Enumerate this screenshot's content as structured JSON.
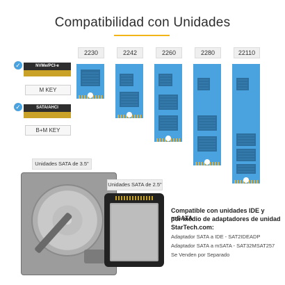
{
  "title": "Compatibilidad con Unidades",
  "m2_sizes": [
    "2230",
    "2242",
    "2260",
    "2280",
    "22110"
  ],
  "keys": [
    {
      "card_label": "NVMe/PCI-e",
      "key_label": "M KEY"
    },
    {
      "card_label": "SATA/AHCI",
      "key_label": "B+M KEY"
    }
  ],
  "sata35_label": "Unidades SATA de 3.5\"",
  "sata25_label": "Unidades SATA de 2.5\"",
  "info": {
    "heading_line1": "Compatible con unidades IDE y mSATA",
    "heading_line2": "por medio de adaptadores de unidad",
    "heading_line3": "StarTech.com:",
    "line1": "Adaptador SATA a IDE  - SAT2IDEADP",
    "line2": "Adaptador SATA a mSATA  - SAT32MSAT257",
    "line3": "Se Venden por Separado"
  },
  "colors": {
    "accent": "#f2b417",
    "card_blue": "#4aa3df",
    "chip": "#2d6f9e"
  }
}
